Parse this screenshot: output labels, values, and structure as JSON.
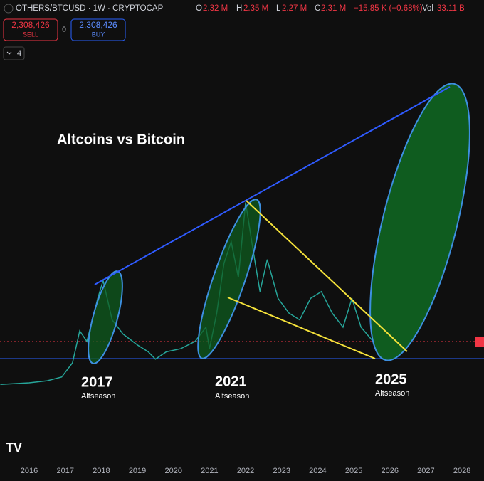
{
  "header": {
    "symbol": "OTHERS/BTCUSD · 1W · CRYPTOCAP",
    "o_label": "O",
    "o": "2.32 M",
    "h_label": "H",
    "h": "2.35 M",
    "l_label": "L",
    "l": "2.27 M",
    "c_label": "C",
    "c": "2.31 M",
    "change": "−15.85 K (−0.68%)",
    "vol_label": "Vol",
    "vol": "33.11 B"
  },
  "trade": {
    "sell_price": "2,308,426",
    "sell": "SELL",
    "spread": "0",
    "buy_price": "2,308,426",
    "buy": "BUY",
    "indicators": "4"
  },
  "chart_data": {
    "type": "line",
    "color": "#26a69a",
    "annotations": [
      "Altcoins vs Bitcoin",
      "2017",
      "Altseason",
      "2021",
      "Altseason",
      "2025",
      "Altseason"
    ],
    "x": [
      2015.2,
      2016.0,
      2016.5,
      2016.9,
      2017.2,
      2017.4,
      2017.6,
      2017.9,
      2018.05,
      2018.3,
      2018.6,
      2019.0,
      2019.3,
      2019.5,
      2019.8,
      2020.2,
      2020.6,
      2020.9,
      2021.0,
      2021.2,
      2021.4,
      2021.6,
      2021.8,
      2022.0,
      2022.2,
      2022.4,
      2022.6,
      2022.9,
      2023.2,
      2023.5,
      2023.8,
      2024.1,
      2024.4,
      2024.7,
      2024.95,
      2025.2,
      2025.5,
      2025.7,
      2025.85
    ],
    "values": [
      1.49,
      1.52,
      1.56,
      1.63,
      1.9,
      2.51,
      2.31,
      3.13,
      3.47,
      2.72,
      2.45,
      2.24,
      2.11,
      1.97,
      2.11,
      2.17,
      2.31,
      2.58,
      2.17,
      2.85,
      3.8,
      4.21,
      3.53,
      4.96,
      4.08,
      3.26,
      3.87,
      3.13,
      2.85,
      2.72,
      3.13,
      3.26,
      2.85,
      2.58,
      3.13,
      2.58,
      2.34,
      2.48,
      2.31
    ],
    "xlim": [
      2015.19,
      2028.61
    ],
    "ylim": [
      0,
      7.6
    ],
    "xticks": [
      2016,
      2017,
      2018,
      2019,
      2020,
      2021,
      2022,
      2023,
      2024,
      2025,
      2026,
      2027,
      2028
    ],
    "grid": false
  }
}
